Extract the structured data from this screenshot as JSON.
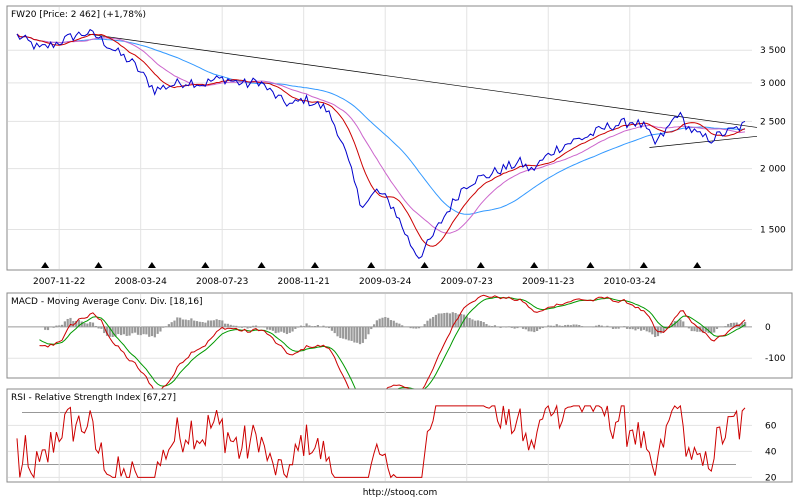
{
  "footer": {
    "url": "http://stooq.com"
  },
  "chart_data": [
    {
      "type": "line",
      "title": "FW20 [Price: 2 462] (+1,78%)",
      "log_scale": true,
      "ylim": [
        1250,
        4000
      ],
      "y_ticks": [
        "3 500",
        "3 000",
        "2 500",
        "2 000",
        "1 500"
      ],
      "y_tick_values": [
        3500,
        3000,
        2500,
        2000,
        1500
      ],
      "x_ticks": [
        "2007-11-22",
        "2008-03-24",
        "2008-07-23",
        "2008-11-21",
        "2009-03-24",
        "2009-07-23",
        "2009-11-23",
        "2010-03-24"
      ],
      "x_tick_positions": [
        15,
        44,
        73,
        102,
        131,
        160,
        189,
        218
      ],
      "n_periods": 260,
      "grid": true,
      "colors": {
        "price": "#0000cc",
        "ma_short": "#cc0000",
        "ma_mid": "#cc66cc",
        "ma_long": "#3399ff",
        "trendline": "#000000"
      },
      "series": [
        {
          "values": [
            3750,
            3640,
            3520,
            3600,
            3680,
            3760,
            3800,
            3720,
            3560,
            3420,
            3300,
            3100,
            2900,
            2960,
            3000,
            3020,
            2980,
            3040,
            3060,
            3010,
            2980,
            3030,
            2880,
            2760,
            2700,
            2780,
            2720,
            2650,
            2400,
            2050,
            1700,
            1720,
            1800,
            1740,
            1660,
            1520,
            1400,
            1320,
            1420,
            1560,
            1700,
            1840,
            1900,
            1930,
            1980,
            2020,
            2060,
            1980,
            2080,
            2180,
            2240,
            2290,
            2330,
            2390,
            2450,
            2470,
            2500,
            2440,
            2250,
            2390,
            2600,
            2420,
            2330,
            2300,
            2360,
            2400,
            2460
          ],
          "x_periods": [
            0,
            4,
            8,
            13,
            17,
            21,
            25,
            29,
            33,
            37,
            41,
            45,
            49,
            54,
            58,
            62,
            66,
            70,
            74,
            78,
            82,
            86,
            90,
            94,
            98,
            102,
            106,
            110,
            114,
            118,
            122,
            125,
            128,
            131,
            134,
            137,
            140,
            143,
            147,
            151,
            155,
            159,
            163,
            167,
            171,
            175,
            179,
            183,
            187,
            191,
            195,
            199,
            203,
            207,
            211,
            215,
            219,
            223,
            227,
            231,
            235,
            239,
            243,
            247,
            251,
            255,
            259
          ]
        }
      ],
      "markers_x": [
        10,
        29,
        48,
        67,
        87,
        106,
        126,
        145,
        165,
        184,
        204,
        223,
        242
      ]
    },
    {
      "type": "line",
      "title": "MACD - Moving Average Conv. Div. [18,16]",
      "ylim": [
        -160,
        70
      ],
      "y_ticks": [
        "0",
        "-100"
      ],
      "y_tick_values": [
        0,
        -100
      ]
    },
    {
      "type": "line",
      "title": "RSI - Relative Strength Index [67,27]",
      "ylim": [
        18,
        78
      ],
      "y_ticks": [
        "60",
        "40",
        "20"
      ],
      "y_tick_values": [
        60,
        40,
        20
      ],
      "levels": [
        70,
        30
      ]
    }
  ]
}
